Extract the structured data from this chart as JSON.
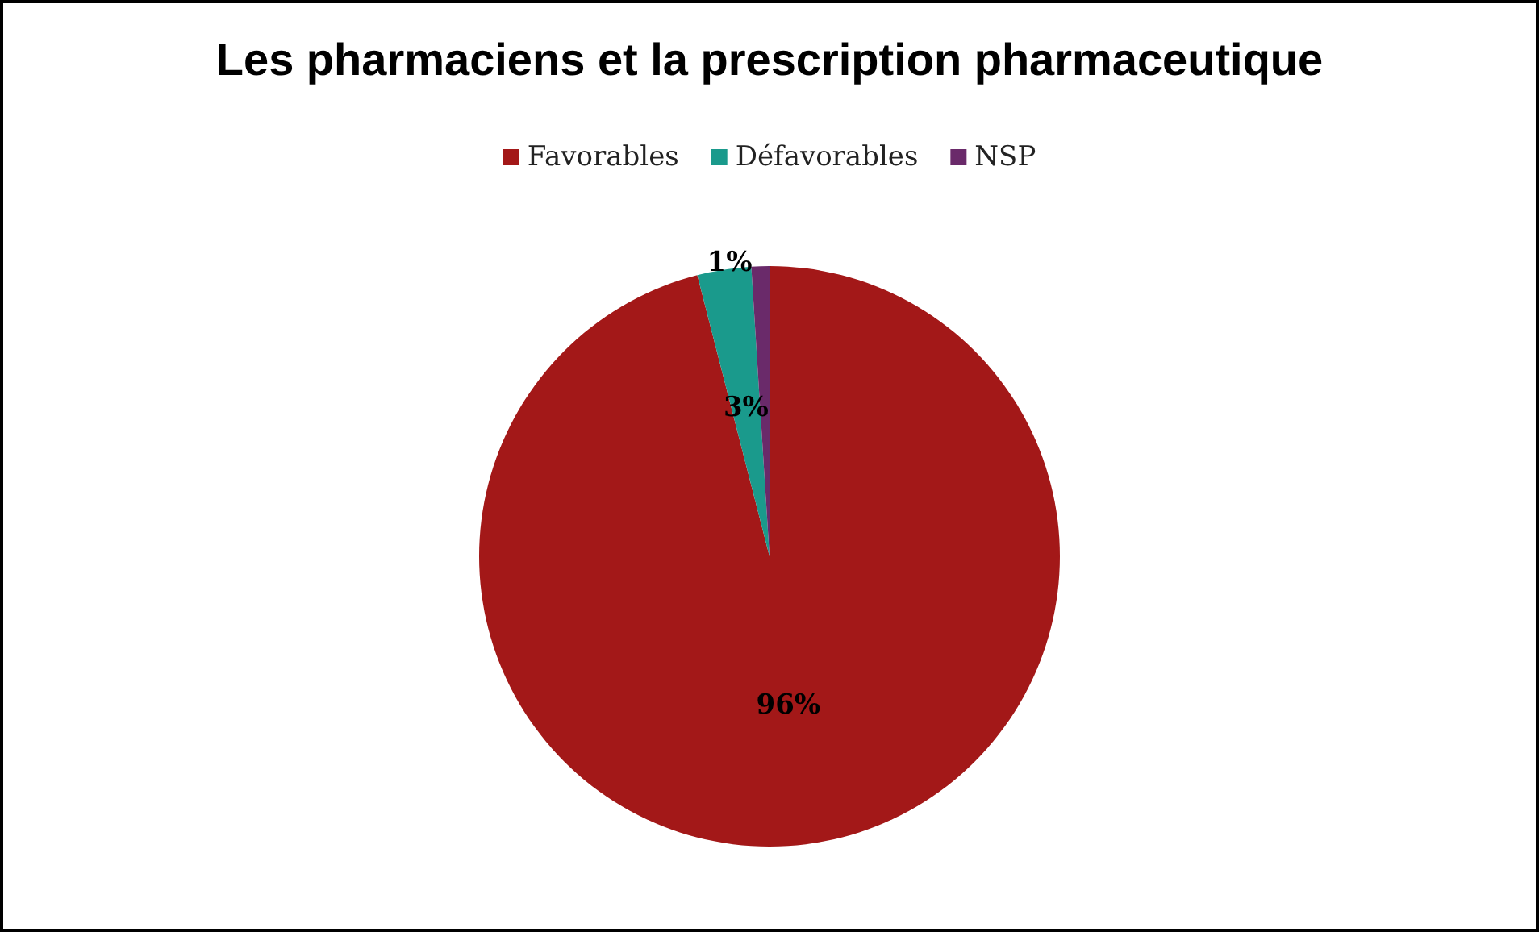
{
  "chart_data": {
    "type": "pie",
    "title": "Les pharmaciens et la prescription pharmaceutique",
    "categories": [
      "Favorables",
      "Défavorables",
      "NSP"
    ],
    "values": [
      96,
      3,
      1
    ],
    "colors": [
      "#a31818",
      "#1a9a8c",
      "#6a2a6a"
    ],
    "value_labels": [
      "96%",
      "3%",
      "1%"
    ],
    "legend": "top"
  }
}
